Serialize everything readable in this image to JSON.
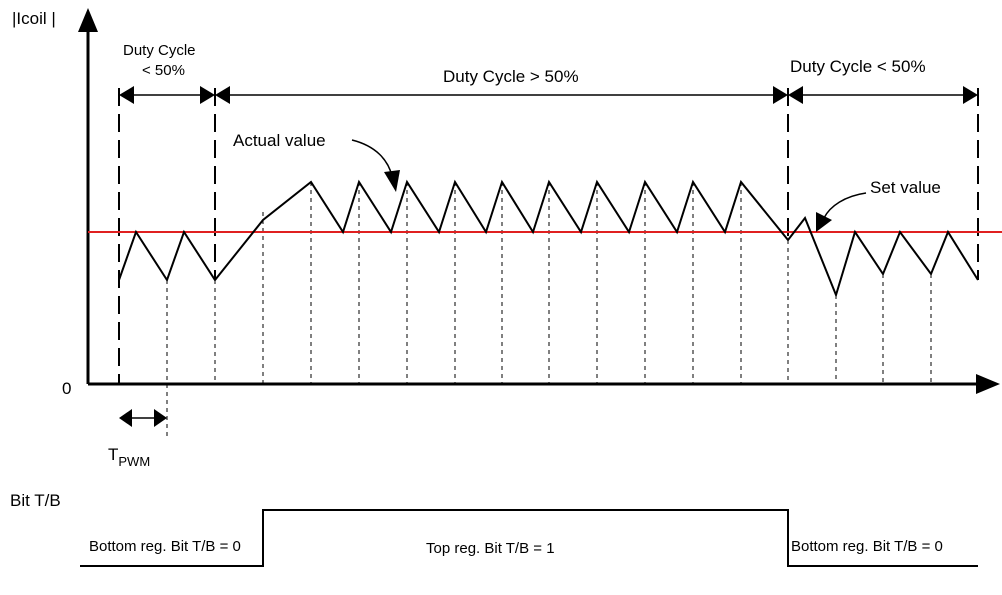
{
  "axis": {
    "y_label": "|Icoil |",
    "origin_label": "0"
  },
  "duty_cycle": {
    "left_line1": "Duty Cycle",
    "left_line2": "< 50%",
    "middle": "Duty Cycle > 50%",
    "right": "Duty Cycle < 50%"
  },
  "annotations": {
    "actual_value": "Actual value",
    "set_value": "Set value"
  },
  "period": {
    "symbol": "T",
    "subscript": "PWM"
  },
  "bit_signal": {
    "label": "Bit T/B",
    "bottom_left": "Bottom reg. Bit T/B = 0",
    "top_middle": "Top reg. Bit T/B = 1",
    "bottom_right": "Bottom reg. Bit T/B = 0"
  },
  "colors": {
    "set_value_line": "#e02020",
    "lines": "#000000"
  }
}
